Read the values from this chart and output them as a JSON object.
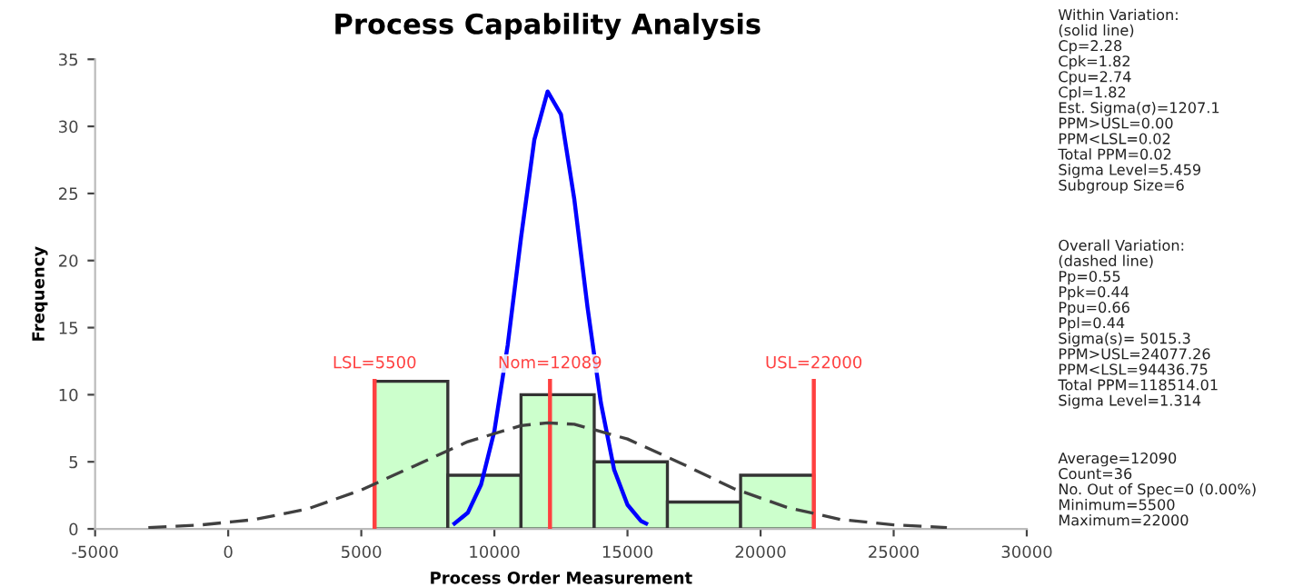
{
  "chart_data": {
    "type": "histogram",
    "title": "Process Capability Analysis",
    "xlabel": "Process Order Measurement",
    "ylabel": "Frequency",
    "bins": [
      5500,
      8250,
      11000,
      13750,
      16500,
      19250,
      22000
    ],
    "values": [
      11,
      4,
      10,
      5,
      2,
      4
    ],
    "color": "#ccffcc",
    "series": [
      {
        "type": "line",
        "color": "#0000ff",
        "line_style": "solid",
        "x": [
          8500,
          9000,
          9500,
          10000,
          10500,
          11000,
          11500,
          12000,
          12500,
          13000,
          13500,
          14000,
          14500,
          15000,
          15500,
          15700
        ],
        "values": [
          0.4,
          1.2,
          3.3,
          7.3,
          13.7,
          21.7,
          29.0,
          32.6,
          30.9,
          24.6,
          16.5,
          9.4,
          4.4,
          1.8,
          0.6,
          0.4
        ]
      },
      {
        "type": "line",
        "color": "#404040",
        "line_style": "dashed",
        "x": [
          -3000,
          -1000,
          1000,
          3000,
          5000,
          7000,
          9000,
          11000,
          12000,
          13000,
          15000,
          17000,
          19000,
          21000,
          23000,
          25000,
          27000
        ],
        "values": [
          0.1,
          0.3,
          0.7,
          1.5,
          2.9,
          4.7,
          6.5,
          7.7,
          7.9,
          7.8,
          6.7,
          4.9,
          3.0,
          1.6,
          0.7,
          0.3,
          0.1
        ]
      }
    ],
    "ref_lines": [
      {
        "axis": "x",
        "value": 5500,
        "label": "LSL=5500",
        "color": "#ff4040"
      },
      {
        "axis": "x",
        "value": 12089,
        "label": "Nom=12089",
        "color": "#ff4040"
      },
      {
        "axis": "x",
        "value": 22000,
        "label": "USL=22000",
        "color": "#ff4040"
      }
    ],
    "xlim": [
      -5000,
      30000
    ],
    "xticks": [
      -5000,
      0,
      5000,
      10000,
      15000,
      20000,
      25000,
      30000
    ],
    "ylim": [
      0,
      35
    ],
    "yticks": [
      0,
      5,
      10,
      15,
      20,
      25,
      30,
      35
    ],
    "grid": false,
    "legend": false,
    "annotations": [
      "Within Variation:\n(solid line)\nCp=2.28\nCpk=1.82\nCpu=2.74\nCpl=1.82\nEst. Sigma(σ)=1207.1\nPPM>USL=0.00\nPPM<LSL=0.02\nTotal PPM=0.02\nSigma Level=5.459\nSubgroup Size=6",
      "Overall Variation:\n(dashed line)\nPp=0.55\nPpk=0.44\nPpu=0.66\nPpl=0.44\nSigma(s)= 5015.3\nPPM>USL=24077.26\nPPM<LSL=94436.75\nTotal PPM=118514.01\nSigma Level=1.314",
      "Average=12090\nCount=36\nNo. Out of Spec=0 (0.00%)\nMinimum=5500\nMaximum=22000"
    ]
  }
}
